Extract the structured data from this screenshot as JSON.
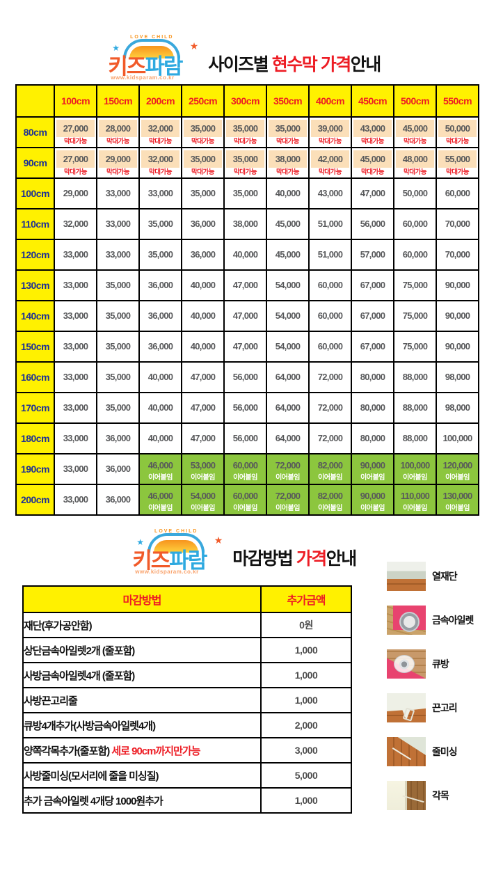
{
  "brand": {
    "arc_text": "LOVE CHILD",
    "name_left": "키즈",
    "name_right": "파람",
    "url": "www.kidsparam.co.kr",
    "star": "★"
  },
  "colors": {
    "yellow": "#FFF100",
    "red": "#ED1C24",
    "navy": "#1D3096",
    "price_gray": "#58595B",
    "peach": "#FBDFB9",
    "green": "#8CC63E",
    "pink": "#E8436F"
  },
  "section_size": {
    "title_parts": [
      {
        "text": "사이즈별 ",
        "color": "#111111"
      },
      {
        "text": "현수막 ",
        "color": "#ED1C24"
      },
      {
        "text": "가격",
        "color": "#ED1C24"
      },
      {
        "text": "안내",
        "color": "#111111"
      }
    ]
  },
  "size_table": {
    "columns": [
      "100cm",
      "150cm",
      "200cm",
      "250cm",
      "300cm",
      "350cm",
      "400cm",
      "450cm",
      "500cm",
      "550cm"
    ],
    "pole_note": "막대가능",
    "join_note": "이어붙임",
    "rows": [
      {
        "label": "80cm",
        "style": "pole",
        "note": "막대가능",
        "values": [
          "27,000",
          "28,000",
          "32,000",
          "35,000",
          "35,000",
          "35,000",
          "39,000",
          "43,000",
          "45,000",
          "50,000"
        ]
      },
      {
        "label": "90cm",
        "style": "pole",
        "note": "막대가능",
        "values": [
          "27,000",
          "29,000",
          "32,000",
          "35,000",
          "35,000",
          "38,000",
          "42,000",
          "45,000",
          "48,000",
          "55,000"
        ]
      },
      {
        "label": "100cm",
        "style": "plain",
        "values": [
          "29,000",
          "33,000",
          "33,000",
          "35,000",
          "35,000",
          "40,000",
          "43,000",
          "47,000",
          "50,000",
          "60,000"
        ]
      },
      {
        "label": "110cm",
        "style": "plain",
        "values": [
          "32,000",
          "33,000",
          "35,000",
          "36,000",
          "38,000",
          "45,000",
          "51,000",
          "56,000",
          "60,000",
          "70,000"
        ]
      },
      {
        "label": "120cm",
        "style": "plain",
        "values": [
          "33,000",
          "33,000",
          "35,000",
          "36,000",
          "40,000",
          "45,000",
          "51,000",
          "57,000",
          "60,000",
          "70,000"
        ]
      },
      {
        "label": "130cm",
        "style": "plain",
        "values": [
          "33,000",
          "35,000",
          "36,000",
          "40,000",
          "47,000",
          "54,000",
          "60,000",
          "67,000",
          "75,000",
          "90,000"
        ]
      },
      {
        "label": "140cm",
        "style": "plain",
        "values": [
          "33,000",
          "35,000",
          "36,000",
          "40,000",
          "47,000",
          "54,000",
          "60,000",
          "67,000",
          "75,000",
          "90,000"
        ]
      },
      {
        "label": "150cm",
        "style": "plain",
        "values": [
          "33,000",
          "35,000",
          "36,000",
          "40,000",
          "47,000",
          "54,000",
          "60,000",
          "67,000",
          "75,000",
          "90,000"
        ]
      },
      {
        "label": "160cm",
        "style": "plain",
        "values": [
          "33,000",
          "35,000",
          "40,000",
          "47,000",
          "56,000",
          "64,000",
          "72,000",
          "80,000",
          "88,000",
          "98,000"
        ]
      },
      {
        "label": "170cm",
        "style": "plain",
        "values": [
          "33,000",
          "35,000",
          "40,000",
          "47,000",
          "56,000",
          "64,000",
          "72,000",
          "80,000",
          "88,000",
          "98,000"
        ]
      },
      {
        "label": "180cm",
        "style": "plain",
        "values": [
          "33,000",
          "36,000",
          "40,000",
          "47,000",
          "56,000",
          "64,000",
          "72,000",
          "80,000",
          "88,000",
          "100,000"
        ]
      },
      {
        "label": "190cm",
        "style": "join",
        "note": "이어붙임",
        "note_start": 2,
        "values": [
          "33,000",
          "36,000",
          "46,000",
          "53,000",
          "60,000",
          "72,000",
          "82,000",
          "90,000",
          "100,000",
          "120,000"
        ]
      },
      {
        "label": "200cm",
        "style": "join",
        "note": "이어붙임",
        "note_start": 2,
        "values": [
          "33,000",
          "36,000",
          "46,000",
          "54,000",
          "60,000",
          "72,000",
          "82,000",
          "90,000",
          "110,000",
          "130,000"
        ]
      }
    ]
  },
  "section_finish": {
    "title_parts": [
      {
        "text": "마감방법 ",
        "color": "#111111"
      },
      {
        "text": "가격",
        "color": "#ED1C24"
      },
      {
        "text": "안내",
        "color": "#111111"
      }
    ]
  },
  "finish_table": {
    "headers": [
      "마감방법",
      "추가금액"
    ],
    "rows": [
      {
        "method": "재단(후가공안함)",
        "method_red": "",
        "price": "0원"
      },
      {
        "method": "상단금속아일렛2개 (줄포함)",
        "method_red": "",
        "price": "1,000"
      },
      {
        "method": "사방금속아일렛4개 (줄포함)",
        "method_red": "",
        "price": "1,000"
      },
      {
        "method": "사방끈고리줄",
        "method_red": "",
        "price": "1,000"
      },
      {
        "method": "큐방4개추가(사방금속아일렛4개)",
        "method_red": "",
        "price": "2,000"
      },
      {
        "method": "양쪽각목추가(줄포함) ",
        "method_red": "세로 90cm까지만가능",
        "price": "3,000"
      },
      {
        "method": "사방줄미싱(모서리에 줄을 미싱질)",
        "method_red": "",
        "price": "5,000"
      },
      {
        "method": "추가 금속아일렛 4개당 1000원추가",
        "method_red": "",
        "price": "1,000"
      }
    ]
  },
  "finish_samples": [
    {
      "label": "열재단",
      "icon": "heat-cut"
    },
    {
      "label": "금속아일렛",
      "icon": "metal-eyelet"
    },
    {
      "label": "큐방",
      "icon": "suction-cup"
    },
    {
      "label": "끈고리",
      "icon": "string-loop"
    },
    {
      "label": "줄미싱",
      "icon": "string-sewing"
    },
    {
      "label": "각목",
      "icon": "wood-bar"
    }
  ]
}
